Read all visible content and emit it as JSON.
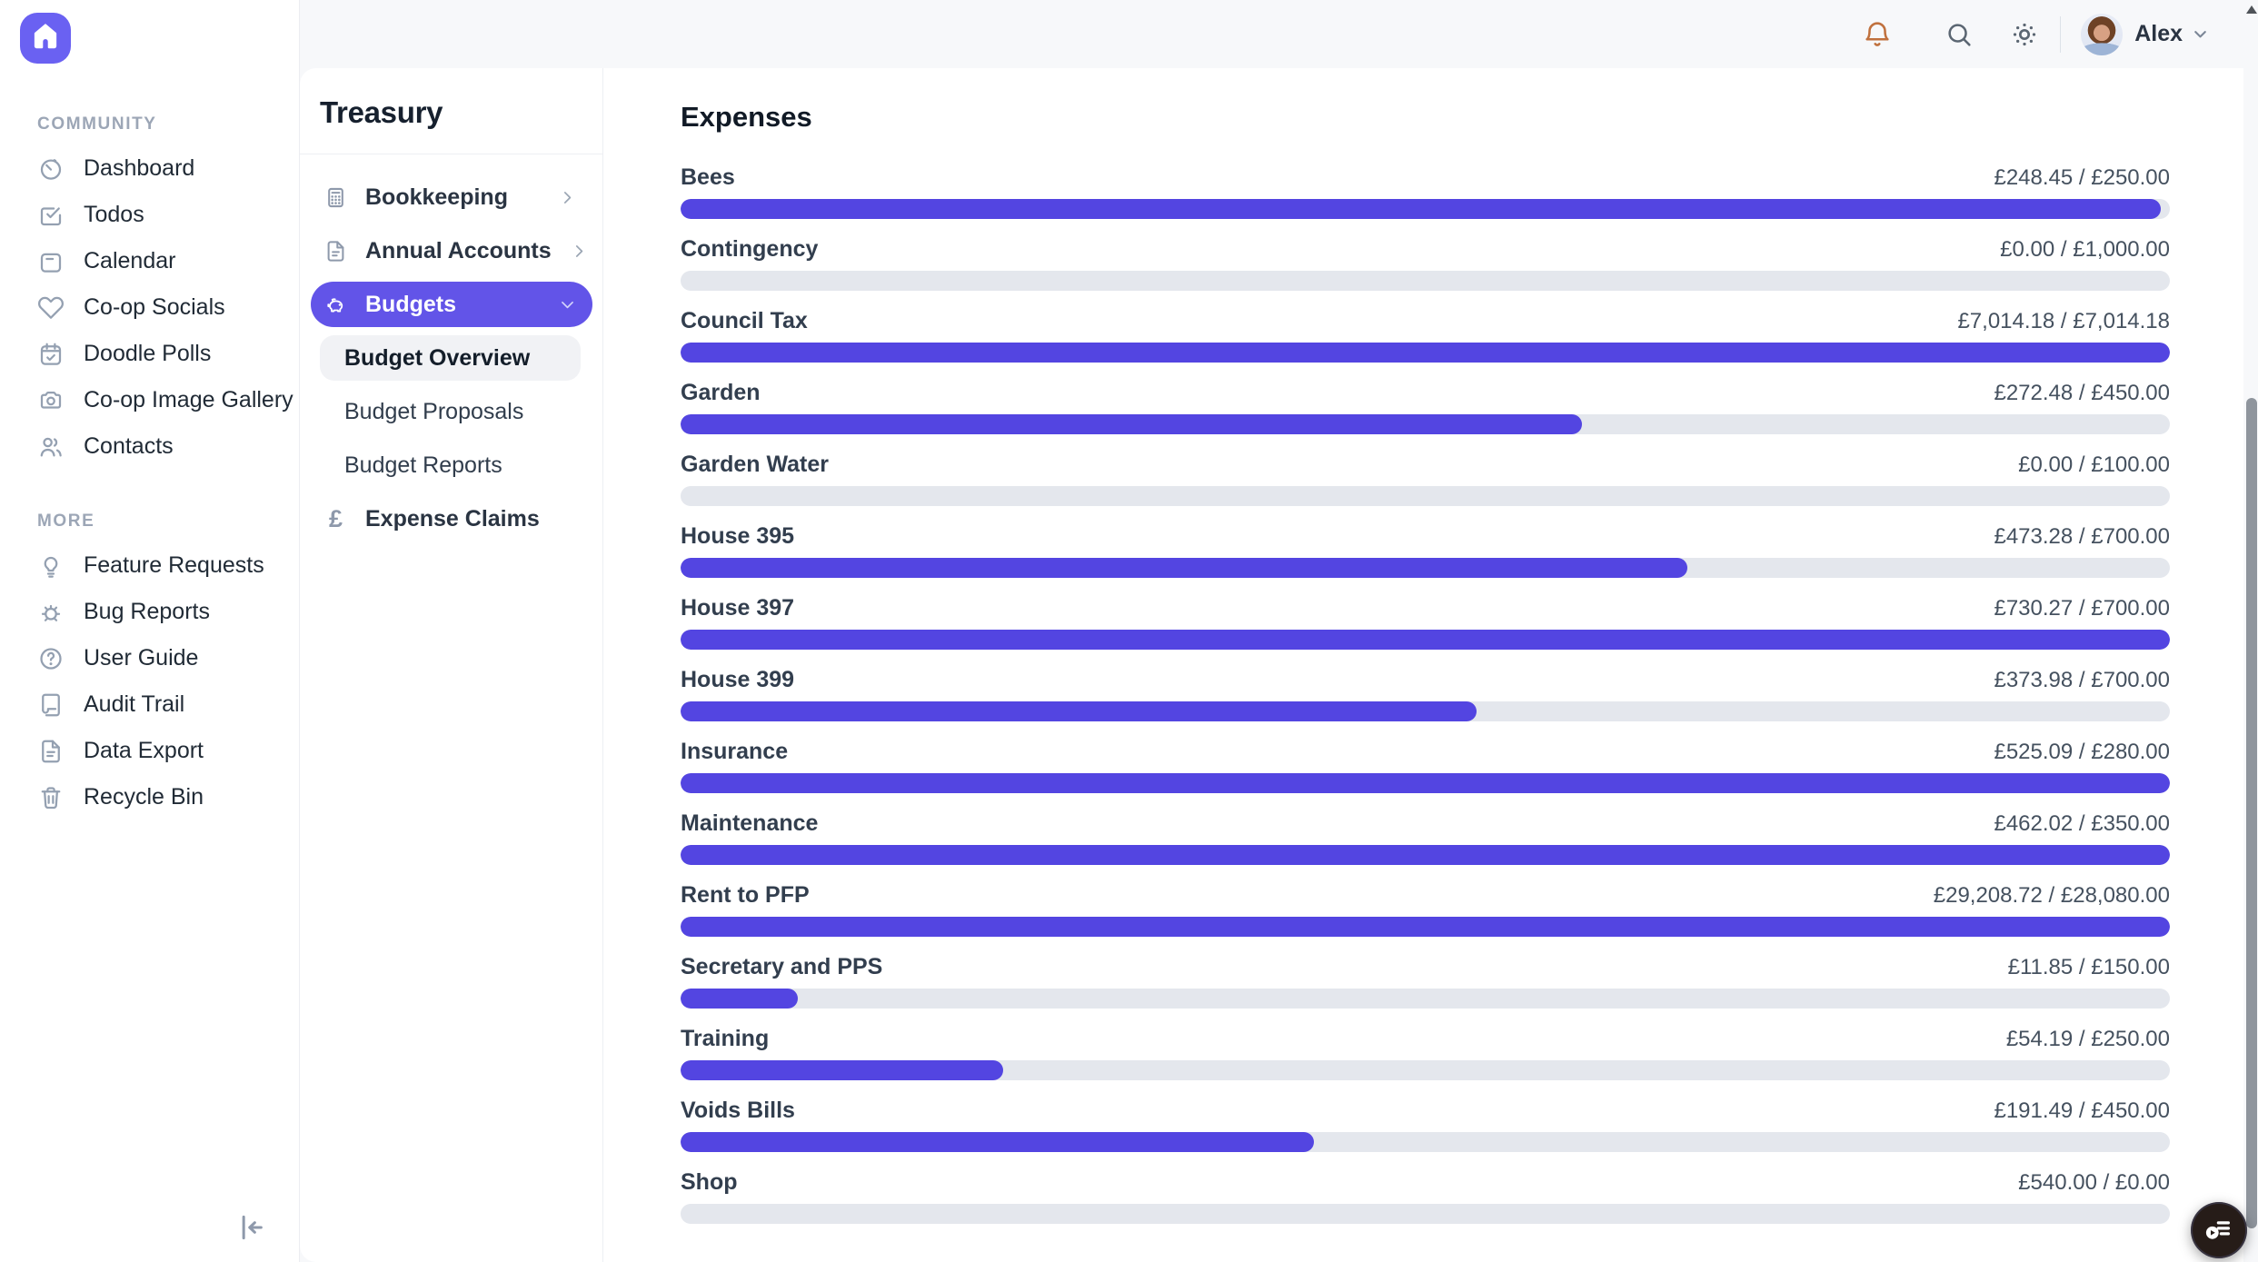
{
  "header": {
    "user_name": "Alex",
    "icons": [
      {
        "name": "bell",
        "label": "notifications"
      },
      {
        "name": "search",
        "label": "search"
      },
      {
        "name": "sun",
        "label": "theme-toggle"
      }
    ]
  },
  "sidebar": {
    "sections": [
      {
        "title": "COMMUNITY",
        "items": [
          {
            "label": "Dashboard",
            "icon": "dashboard"
          },
          {
            "label": "Todos",
            "icon": "todos"
          },
          {
            "label": "Calendar",
            "icon": "calendar"
          },
          {
            "label": "Co-op Socials",
            "icon": "heart"
          },
          {
            "label": "Doodle Polls",
            "icon": "calendar-check"
          },
          {
            "label": "Co-op Image Gallery",
            "icon": "camera"
          },
          {
            "label": "Contacts",
            "icon": "users"
          }
        ]
      },
      {
        "title": "MORE",
        "items": [
          {
            "label": "Feature Requests",
            "icon": "lightbulb"
          },
          {
            "label": "Bug Reports",
            "icon": "bug"
          },
          {
            "label": "User Guide",
            "icon": "help-circle"
          },
          {
            "label": "Audit Trail",
            "icon": "scroll"
          },
          {
            "label": "Data Export",
            "icon": "file-text"
          },
          {
            "label": "Recycle Bin",
            "icon": "trash"
          }
        ]
      }
    ]
  },
  "treasury": {
    "title": "Treasury",
    "items": [
      {
        "label": "Bookkeeping",
        "icon": "calculator",
        "chevron": "right",
        "type": "parent"
      },
      {
        "label": "Annual Accounts",
        "icon": "document",
        "chevron": "right",
        "type": "parent"
      },
      {
        "label": "Budgets",
        "icon": "piggy-bank",
        "chevron": "down",
        "type": "parent",
        "active": true
      },
      {
        "label": "Budget Overview",
        "type": "sub",
        "selected": true
      },
      {
        "label": "Budget Proposals",
        "type": "sub"
      },
      {
        "label": "Budget Reports",
        "type": "sub"
      },
      {
        "label": "Expense Claims",
        "icon": "pound",
        "type": "parent"
      }
    ]
  },
  "main": {
    "title": "Expenses",
    "currency": "£"
  },
  "chart_data": {
    "type": "bar",
    "title": "Expenses",
    "categories": [
      "Bees",
      "Contingency",
      "Council Tax",
      "Garden",
      "Garden Water",
      "House 395",
      "House 397",
      "House 399",
      "Insurance",
      "Maintenance",
      "Rent to PFP",
      "Secretary and PPS",
      "Training",
      "Voids Bills",
      "Shop"
    ],
    "series": [
      {
        "name": "spent",
        "values": [
          248.45,
          0.0,
          7014.18,
          272.48,
          0.0,
          473.28,
          730.27,
          373.98,
          525.09,
          462.02,
          29208.72,
          11.85,
          54.19,
          191.49,
          540.0
        ]
      },
      {
        "name": "budget",
        "values": [
          250.0,
          1000.0,
          7014.18,
          450.0,
          100.0,
          700.0,
          700.0,
          700.0,
          280.0,
          350.0,
          28080.0,
          150.0,
          250.0,
          450.0,
          0.0
        ]
      }
    ],
    "display": [
      "£248.45 / £250.00",
      "£0.00 / £1,000.00",
      "£7,014.18 / £7,014.18",
      "£272.48 / £450.00",
      "£0.00 / £100.00",
      "£473.28 / £700.00",
      "£730.27 / £700.00",
      "£373.98 / £700.00",
      "£525.09 / £280.00",
      "£462.02 / £350.00",
      "£29,208.72 / £28,080.00",
      "£11.85 / £150.00",
      "£54.19 / £250.00",
      "£191.49 / £450.00",
      "£540.00 / £0.00"
    ]
  },
  "colors": {
    "accent_bar": "#5345e1",
    "accent_nav": "#6254e8",
    "bar_track": "#e4e7ed",
    "bell": "#c0713e",
    "logo_bg": "#6a61f2"
  }
}
